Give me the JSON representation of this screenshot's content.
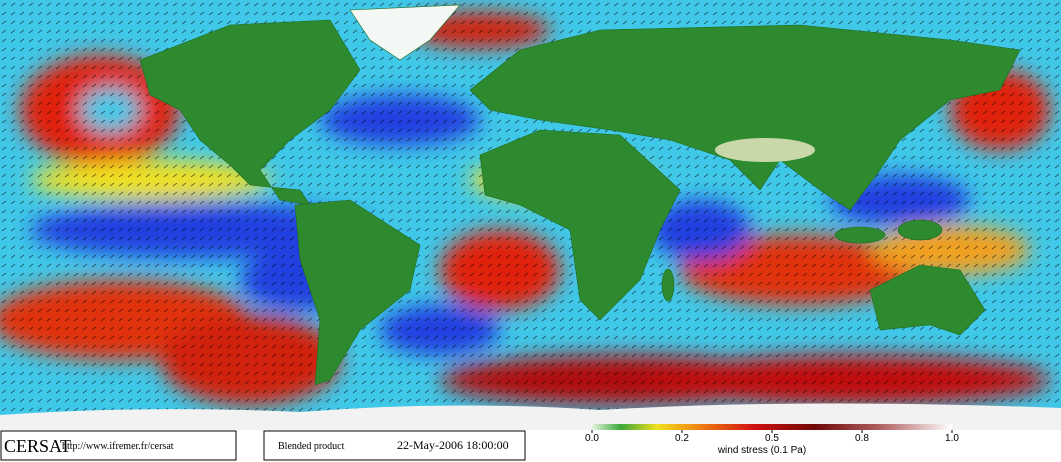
{
  "footer": {
    "logo": "CERSAT",
    "url": "http://www.ifremer.fr/cersat",
    "product": "Blended product",
    "date": "22-May-2006 18:00:00"
  },
  "colorbar": {
    "ticks": [
      {
        "value": 0,
        "label": "0.0"
      },
      0.2,
      0.5,
      0.8,
      {
        "value": 1,
        "label": "1.0"
      }
    ],
    "label": "wind stress (0.1 Pa)"
  }
}
